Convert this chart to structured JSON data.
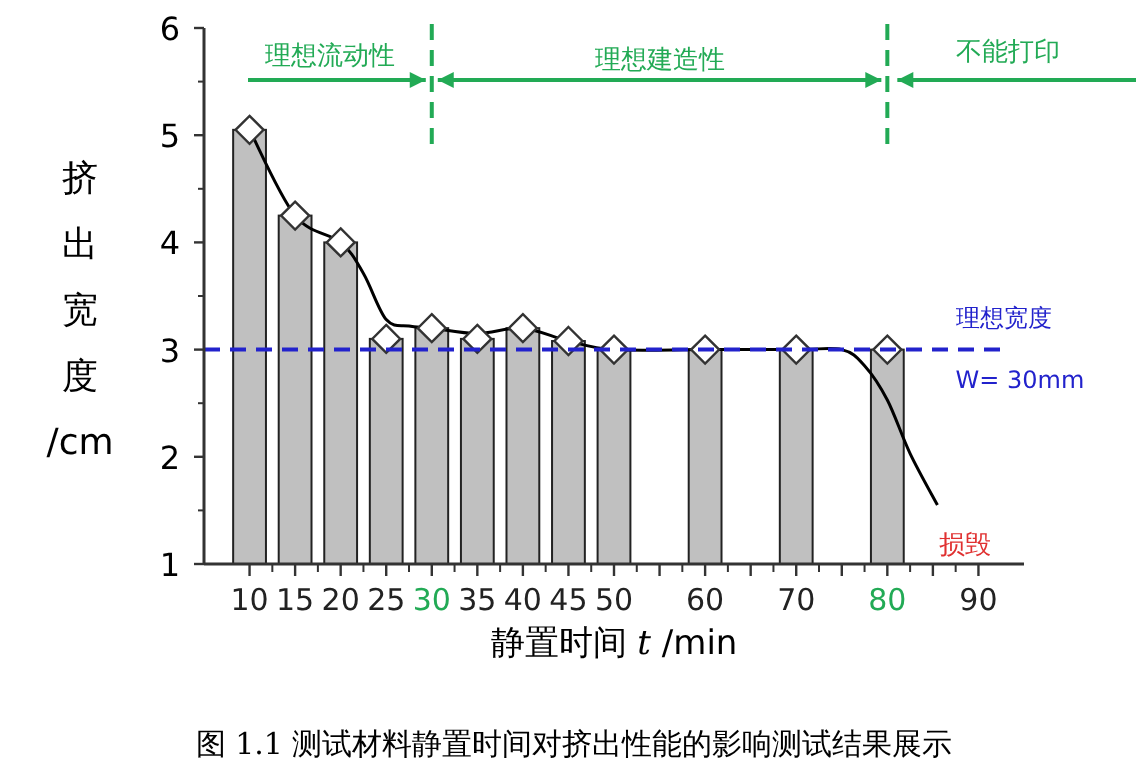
{
  "chart_data": {
    "type": "bar",
    "xlabel": "静置时间 *t* /min",
    "ylabel": "挤出宽度/cm",
    "xlim": [
      5,
      95
    ],
    "ylim": [
      1,
      6
    ],
    "xticks": [
      10,
      15,
      20,
      25,
      30,
      35,
      40,
      45,
      50,
      {
        "value": 55,
        "label": null
      },
      60,
      {
        "value": 65,
        "label": null
      },
      70,
      {
        "value": 75,
        "label": null
      },
      80,
      {
        "value": 85,
        "label": null
      },
      90
    ],
    "yticks": [
      1,
      2,
      3,
      4,
      5,
      6
    ],
    "grid": false,
    "series": [
      {
        "color": "#c0c0c0",
        "x": [
          10,
          15,
          20,
          25,
          30,
          35,
          40,
          45,
          50,
          60,
          70,
          80
        ],
        "values": [
          5.05,
          4.25,
          4.0,
          3.1,
          3.2,
          3.1,
          3.2,
          3.08,
          3.0,
          3.0,
          3.0,
          3.0
        ]
      },
      {
        "type": "scatter",
        "marker": "diamond",
        "color": "#ffffff",
        "x": [
          10,
          15,
          20,
          25,
          30,
          35,
          40,
          45,
          50,
          60,
          70,
          80
        ],
        "values": [
          5.05,
          4.25,
          4.0,
          3.1,
          3.2,
          3.1,
          3.2,
          3.08,
          3.0,
          3.0,
          3.0,
          3.0
        ]
      },
      {
        "type": "line",
        "color": "#000000",
        "x": [
          10,
          15,
          20,
          22.5,
          25,
          27.5,
          30,
          35,
          40,
          45,
          50,
          60,
          70,
          75,
          77.5,
          80,
          82.5,
          85.5
        ],
        "values": [
          5.05,
          4.25,
          4.0,
          3.71,
          3.28,
          3.22,
          3.2,
          3.15,
          3.2,
          3.08,
          3.0,
          3.0,
          3.0,
          3.0,
          2.85,
          2.53,
          2.03,
          1.55
        ]
      }
    ],
    "ref_lines": [
      {
        "axis": "y",
        "value": 3,
        "label": "理想宽度",
        "color": "#2222cc",
        "line_style": "dashed"
      },
      {
        "axis": "x",
        "value": 30,
        "color": "#22aa55",
        "line_style": "dashed"
      },
      {
        "axis": "x",
        "value": 80,
        "color": "#22aa55",
        "line_style": "dashed"
      }
    ],
    "annotations": [
      "理想流动性",
      "理想建造性",
      "不能打印",
      "W= 30mm",
      {
        "text": "损毁",
        "x": 85.5,
        "y": 1.55
      },
      "图 1.1 测试材料静置时间对挤出性能的影响测试结果展示"
    ]
  }
}
